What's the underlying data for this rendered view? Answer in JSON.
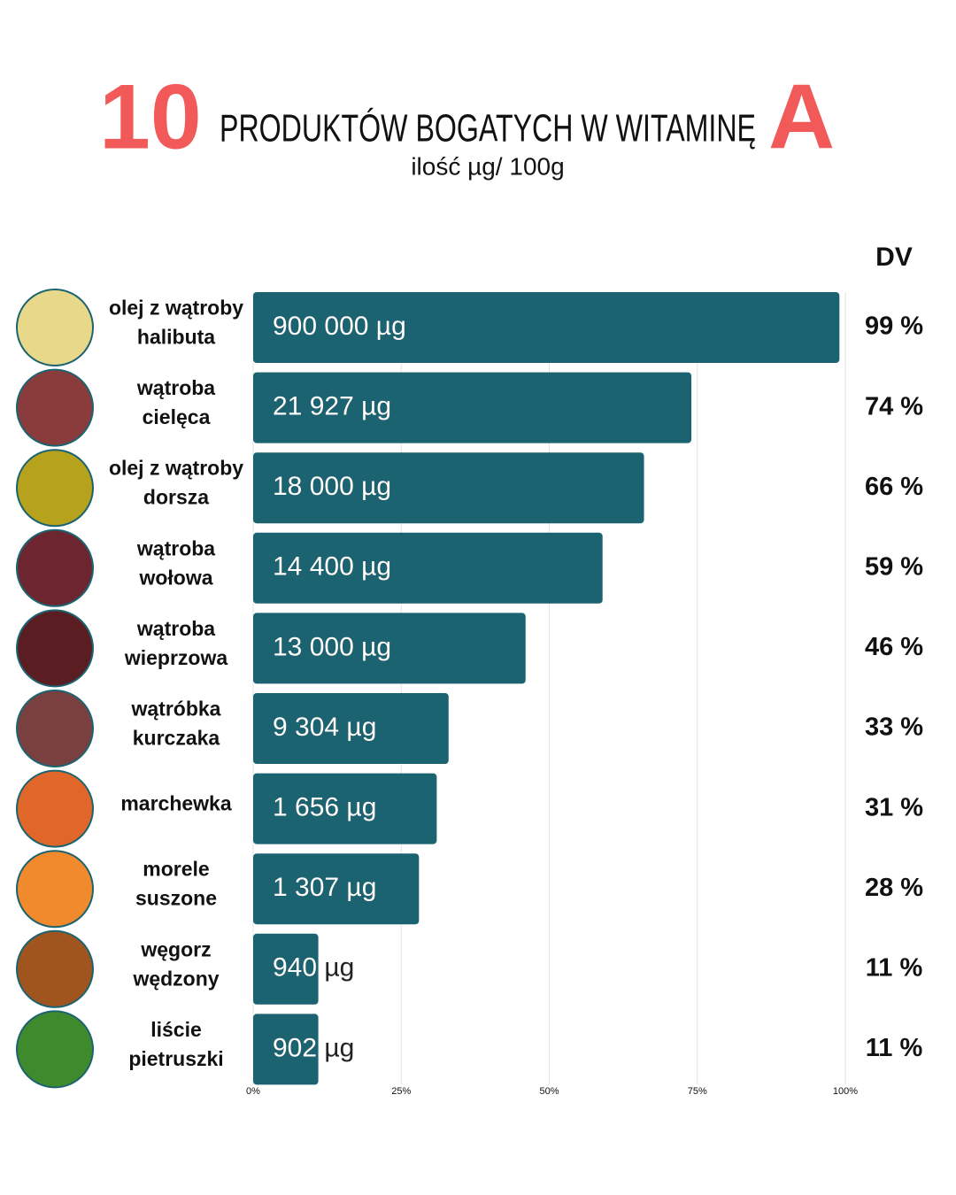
{
  "chart_data": {
    "type": "bar",
    "title_number": "10",
    "title": "PRODUKTÓW BOGATYCH W WITAMINĘ",
    "title_letter": "A",
    "subtitle": "ilość µg/ 100g",
    "value_header": "DV",
    "categories": [
      "olej z wątroby\nhalibuta",
      "wątroba\ncielęca",
      "olej z wątroby\ndorsza",
      "wątroba\nwołowa",
      "wątroba\nwieprzowa",
      "wątróbka\nkurczaka",
      "marchewka",
      "morele\nsuszone",
      "węgorz\nwędzony",
      "liście\npietruszki"
    ],
    "amounts": [
      "900 000 µg",
      "21 927 µg",
      "18 000 µg",
      "14 400 µg",
      "13 000 µg",
      "9 304 µg",
      "1 656 µg",
      "1 307 µg",
      "940 µg",
      "902 µg"
    ],
    "values": [
      99,
      74,
      66,
      59,
      46,
      33,
      31,
      28,
      11,
      11
    ],
    "value_labels": [
      "99 %",
      "74 %",
      "66 %",
      "59 %",
      "46 %",
      "33 %",
      "31 %",
      "28 %",
      "11 %",
      "11 %"
    ],
    "color": "#1b6370",
    "accent_color": "#f25a5a",
    "xlim": [
      0,
      100
    ],
    "xticks": [
      {
        "value": 0,
        "label": "0%"
      },
      {
        "value": 25,
        "label": "25%"
      },
      {
        "value": 50,
        "label": "50%"
      },
      {
        "value": 75,
        "label": "75%"
      },
      {
        "value": 100,
        "label": "100%"
      }
    ],
    "grid": true
  }
}
